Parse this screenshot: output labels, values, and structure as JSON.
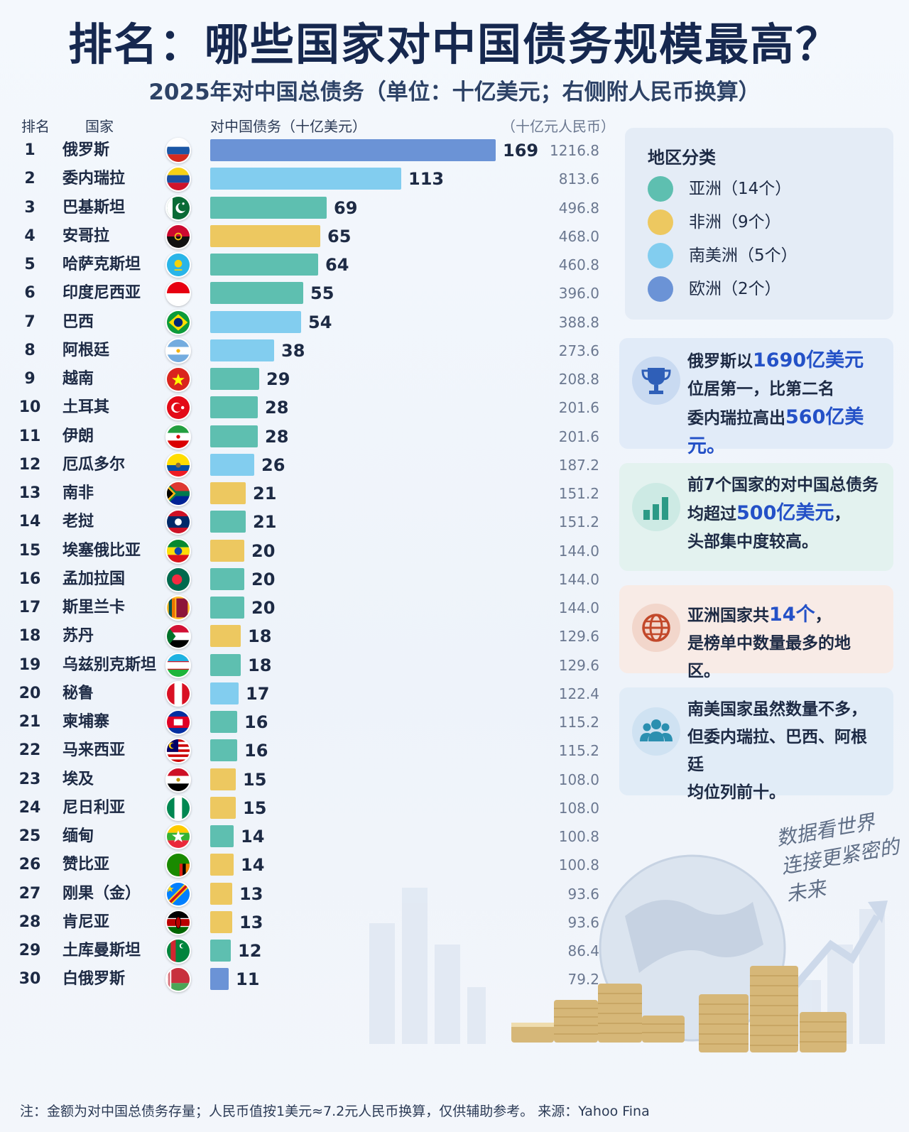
{
  "title": "排名：哪些国家对中国债务规模最高？",
  "subtitle": "2025年对中国总债务（单位：十亿美元；右侧附人民币换算）",
  "headers": {
    "rank": "排名",
    "country": "国家",
    "debt": "对中国债务（十亿美元）",
    "rmb": "（十亿元人民币）"
  },
  "colors": {
    "asia": "#5ebfb0",
    "africa": "#edc860",
    "south_america": "#82cdef",
    "europe": "#6b93d6"
  },
  "chart_data": {
    "type": "bar",
    "orientation": "horizontal",
    "title": "排名：哪些国家对中国债务规模最高？",
    "subtitle": "2025年对中国总债务（单位：十亿美元；右侧附人民币换算）",
    "xlabel": "对中国债务（十亿美元）",
    "xlim": [
      0,
      169
    ],
    "rows": [
      {
        "rank": "1",
        "country": "俄罗斯",
        "value": 169,
        "rmb": "1216.8",
        "region": "europe",
        "flag": "russia-flag"
      },
      {
        "rank": "2",
        "country": "委内瑞拉",
        "value": 113,
        "rmb": "813.6",
        "region": "south_america",
        "flag": "venezuela-flag"
      },
      {
        "rank": "3",
        "country": "巴基斯坦",
        "value": 69,
        "rmb": "496.8",
        "region": "asia",
        "flag": "pakistan-flag"
      },
      {
        "rank": "4",
        "country": "安哥拉",
        "value": 65,
        "rmb": "468.0",
        "region": "africa",
        "flag": "angola-flag"
      },
      {
        "rank": "5",
        "country": "哈萨克斯坦",
        "value": 64,
        "rmb": "460.8",
        "region": "asia",
        "flag": "kazakhstan-flag"
      },
      {
        "rank": "6",
        "country": "印度尼西亚",
        "value": 55,
        "rmb": "396.0",
        "region": "asia",
        "flag": "indonesia-flag"
      },
      {
        "rank": "7",
        "country": "巴西",
        "value": 54,
        "rmb": "388.8",
        "region": "south_america",
        "flag": "brazil-flag"
      },
      {
        "rank": "8",
        "country": "阿根廷",
        "value": 38,
        "rmb": "273.6",
        "region": "south_america",
        "flag": "argentina-flag"
      },
      {
        "rank": "9",
        "country": "越南",
        "value": 29,
        "rmb": "208.8",
        "region": "asia",
        "flag": "vietnam-flag"
      },
      {
        "rank": "10",
        "country": "土耳其",
        "value": 28,
        "rmb": "201.6",
        "region": "asia",
        "flag": "turkey-flag"
      },
      {
        "rank": "11",
        "country": "伊朗",
        "value": 28,
        "rmb": "201.6",
        "region": "asia",
        "flag": "iran-flag"
      },
      {
        "rank": "12",
        "country": "厄瓜多尔",
        "value": 26,
        "rmb": "187.2",
        "region": "south_america",
        "flag": "ecuador-flag"
      },
      {
        "rank": "13",
        "country": "南非",
        "value": 21,
        "rmb": "151.2",
        "region": "africa",
        "flag": "south-africa-flag"
      },
      {
        "rank": "14",
        "country": "老挝",
        "value": 21,
        "rmb": "151.2",
        "region": "asia",
        "flag": "laos-flag"
      },
      {
        "rank": "15",
        "country": "埃塞俄比亚",
        "value": 20,
        "rmb": "144.0",
        "region": "africa",
        "flag": "ethiopia-flag"
      },
      {
        "rank": "16",
        "country": "孟加拉国",
        "value": 20,
        "rmb": "144.0",
        "region": "asia",
        "flag": "bangladesh-flag"
      },
      {
        "rank": "17",
        "country": "斯里兰卡",
        "value": 20,
        "rmb": "144.0",
        "region": "asia",
        "flag": "sri-lanka-flag"
      },
      {
        "rank": "18",
        "country": "苏丹",
        "value": 18,
        "rmb": "129.6",
        "region": "africa",
        "flag": "sudan-flag"
      },
      {
        "rank": "19",
        "country": "乌兹别克斯坦",
        "value": 18,
        "rmb": "129.6",
        "region": "asia",
        "flag": "uzbekistan-flag"
      },
      {
        "rank": "20",
        "country": "秘鲁",
        "value": 17,
        "rmb": "122.4",
        "region": "south_america",
        "flag": "peru-flag"
      },
      {
        "rank": "21",
        "country": "柬埔寨",
        "value": 16,
        "rmb": "115.2",
        "region": "asia",
        "flag": "cambodia-flag"
      },
      {
        "rank": "22",
        "country": "马来西亚",
        "value": 16,
        "rmb": "115.2",
        "region": "asia",
        "flag": "malaysia-flag"
      },
      {
        "rank": "23",
        "country": "埃及",
        "value": 15,
        "rmb": "108.0",
        "region": "africa",
        "flag": "egypt-flag"
      },
      {
        "rank": "24",
        "country": "尼日利亚",
        "value": 15,
        "rmb": "108.0",
        "region": "africa",
        "flag": "nigeria-flag"
      },
      {
        "rank": "25",
        "country": "缅甸",
        "value": 14,
        "rmb": "100.8",
        "region": "asia",
        "flag": "myanmar-flag"
      },
      {
        "rank": "26",
        "country": "赞比亚",
        "value": 14,
        "rmb": "100.8",
        "region": "africa",
        "flag": "zambia-flag"
      },
      {
        "rank": "27",
        "country": "刚果（金）",
        "value": 13,
        "rmb": "93.6",
        "region": "africa",
        "flag": "dr-congo-flag"
      },
      {
        "rank": "28",
        "country": "肯尼亚",
        "value": 13,
        "rmb": "93.6",
        "region": "africa",
        "flag": "kenya-flag"
      },
      {
        "rank": "29",
        "country": "土库曼斯坦",
        "value": 12,
        "rmb": "86.4",
        "region": "asia",
        "flag": "turkmenistan-flag"
      },
      {
        "rank": "30",
        "country": "白俄罗斯",
        "value": 11,
        "rmb": "79.2",
        "region": "europe",
        "flag": "belarus-flag"
      }
    ]
  },
  "legend": {
    "title": "地区分类",
    "items": [
      {
        "label": "亚洲（14个）",
        "region": "asia"
      },
      {
        "label": "非洲（9个）",
        "region": "africa"
      },
      {
        "label": "南美洲（5个）",
        "region": "south_america"
      },
      {
        "label": "欧洲（2个）",
        "region": "europe"
      }
    ]
  },
  "cards": [
    {
      "icon": "trophy-icon",
      "lines": [
        [
          "俄罗斯以",
          "1690亿美元"
        ],
        [
          "位居第一，比第二名"
        ],
        [
          "委内瑞拉高出",
          "560亿美元。"
        ]
      ]
    },
    {
      "icon": "bar-chart-icon",
      "lines": [
        [
          "前7个国家的对中国总债务"
        ],
        [
          "均超过",
          "500亿美元",
          "，"
        ],
        [
          "头部集中度较高。"
        ]
      ]
    },
    {
      "icon": "globe-icon",
      "lines": [
        [
          "亚洲国家共",
          "14个",
          "，"
        ],
        [
          "是榜单中数量最多的地区。"
        ]
      ]
    },
    {
      "icon": "people-icon",
      "lines": [
        [
          "南美国家虽然数量不多，"
        ],
        [
          "但委内瑞拉、巴西、阿根廷"
        ],
        [
          "均位列前十。"
        ]
      ]
    }
  ],
  "slogan": {
    "line1": "数据看世界",
    "line2": "连接更紧密的未来"
  },
  "footnote": "注：金额为对中国总债务存量；人民币值按1美元≈7.2元人民币换算，仅供辅助参考。  来源：Yahoo Fina"
}
